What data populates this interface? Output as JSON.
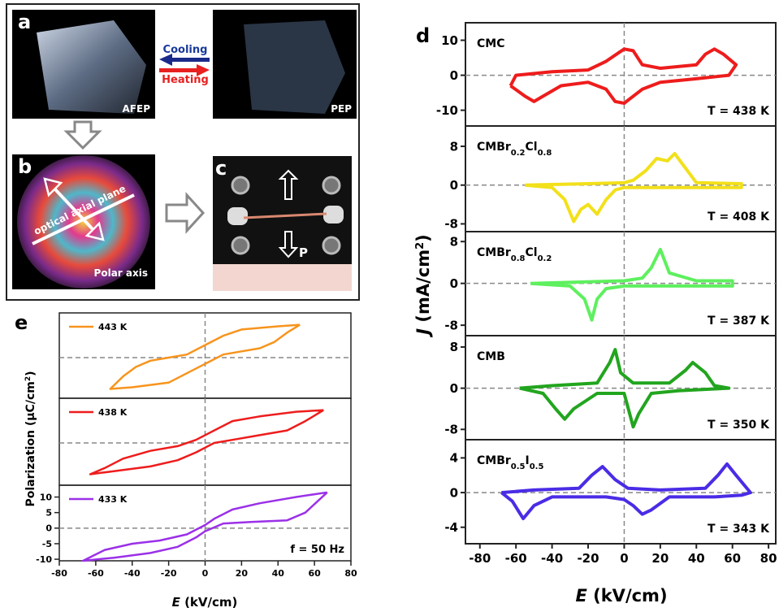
{
  "figure": {
    "panel_a": {
      "letter": "a",
      "left_label": "AFEP",
      "right_label": "PEP",
      "cooling": "Cooling",
      "heating": "Heating"
    },
    "panel_b": {
      "letter": "b",
      "plane": "optical axial plane",
      "axis": "Polar axis"
    },
    "panel_c": {
      "letter": "c",
      "pole": "P"
    },
    "panel_d": {
      "letter": "d",
      "ylabel_parts": [
        "J",
        " (mA/cm",
        "2",
        ")"
      ],
      "xlabel_parts": [
        "E",
        " (kV/cm)"
      ]
    },
    "panel_e": {
      "letter": "e",
      "ylabel_parts": [
        "Polarization (μC/cm",
        "2",
        ")"
      ],
      "xlabel_parts": [
        "E",
        " (kV/cm)"
      ]
    }
  },
  "chart_data": [
    {
      "type": "line",
      "name_parts": [
        "CMC"
      ],
      "temperature": "T = 438 K",
      "xlim": [
        -88,
        84
      ],
      "ylim": [
        -14.5,
        15
      ],
      "yticks": [
        -10,
        0,
        10
      ],
      "series": [
        {
          "color": "#ee1c1c",
          "x": [
            -63,
            -60,
            -40,
            -20,
            -10,
            0,
            5,
            10,
            20,
            40,
            45,
            50,
            55,
            62,
            58,
            40,
            20,
            10,
            0,
            -5,
            -10,
            -20,
            -35,
            -45,
            -50,
            -55,
            -63
          ],
          "values": [
            -3,
            0,
            1,
            1.5,
            4,
            7.5,
            7,
            3,
            2,
            3,
            6,
            7.5,
            6,
            3,
            0,
            -1,
            -2,
            -4,
            -8,
            -7.5,
            -4,
            -2,
            -3,
            -6,
            -7.5,
            -6,
            -3
          ]
        }
      ]
    },
    {
      "type": "line",
      "name_parts": [
        "CMBr",
        "0.2",
        "Cl",
        "0.8"
      ],
      "temperature": "T = 408 K",
      "xlim": [
        -88,
        84
      ],
      "ylim": [
        -9.6,
        12.2
      ],
      "yticks": [
        -8,
        0,
        8
      ],
      "series": [
        {
          "color": "#f2e01a",
          "x": [
            -55,
            -40,
            -33,
            -28,
            -24,
            -20,
            -15,
            -10,
            -5,
            0,
            20,
            65,
            65,
            40,
            33,
            28,
            24,
            18,
            12,
            5,
            0,
            -20,
            -55
          ],
          "values": [
            0,
            -0.5,
            -3,
            -7.5,
            -5,
            -4,
            -6,
            -3,
            -1,
            -0.5,
            -0.5,
            -0.5,
            0.3,
            0.5,
            4,
            6.5,
            5,
            5.5,
            3,
            1,
            0.5,
            0.3,
            0
          ]
        }
      ]
    },
    {
      "type": "line",
      "name_parts": [
        "CMBr",
        "0.8",
        "Cl",
        "0.2"
      ],
      "temperature": "T = 387 K",
      "xlim": [
        -88,
        84
      ],
      "ylim": [
        -10,
        9.9
      ],
      "yticks": [
        -8,
        0,
        8
      ],
      "series": [
        {
          "color": "#5ef05e",
          "x": [
            -52,
            -30,
            -22,
            -18,
            -15,
            -10,
            0,
            30,
            60,
            60,
            40,
            25,
            20,
            15,
            10,
            0,
            -52
          ],
          "values": [
            0,
            -0.5,
            -3,
            -7,
            -3,
            -1,
            -0.5,
            -0.5,
            -0.5,
            0.5,
            0.5,
            2,
            6.5,
            3,
            1,
            0.5,
            0
          ]
        }
      ]
    },
    {
      "type": "line",
      "name_parts": [
        "CMB"
      ],
      "temperature": "T = 350 K",
      "xlim": [
        -88,
        84
      ],
      "ylim": [
        -10,
        10.2
      ],
      "yticks": [
        -8,
        0,
        8
      ],
      "series": [
        {
          "color": "#22a51e",
          "x": [
            -58,
            -45,
            -38,
            -33,
            -28,
            -15,
            0,
            5,
            8,
            15,
            30,
            58,
            50,
            45,
            38,
            34,
            25,
            5,
            -2,
            -5,
            -8,
            -15,
            -40,
            -58
          ],
          "values": [
            0,
            -1,
            -4,
            -6,
            -4,
            -1,
            -1,
            -7.5,
            -5,
            -1,
            -0.5,
            0,
            0.5,
            3,
            5,
            3.5,
            1,
            1,
            3,
            7.5,
            5,
            1,
            0.5,
            0
          ]
        }
      ]
    },
    {
      "type": "line",
      "name_parts": [
        "CMBr",
        "0.5",
        "I",
        "0.5"
      ],
      "temperature": "T = 343 K",
      "xlim": [
        -88,
        84
      ],
      "ylim": [
        -5.9,
        6.1
      ],
      "yticks": [
        -4,
        0,
        4
      ],
      "xticks": [
        -80,
        -60,
        -40,
        -20,
        0,
        20,
        40,
        60,
        80
      ],
      "series": [
        {
          "color": "#4a2ce6",
          "x": [
            -68,
            -62,
            -56,
            -50,
            -40,
            -10,
            0,
            5,
            10,
            15,
            25,
            50,
            65,
            70,
            62,
            57,
            52,
            45,
            20,
            2,
            -5,
            -12,
            -18,
            -25,
            -50,
            -68
          ],
          "values": [
            0,
            -1,
            -3,
            -1.5,
            -0.5,
            -0.5,
            -0.8,
            -1.5,
            -2.5,
            -2,
            -0.5,
            -0.5,
            -0.3,
            0,
            2,
            3.3,
            2,
            0.5,
            0.3,
            0.5,
            1.5,
            3,
            2,
            0.5,
            0.3,
            0
          ]
        }
      ]
    },
    {
      "type": "line",
      "xlim": [
        -80,
        80
      ],
      "ylim": [
        -13,
        14.3
      ],
      "series": [
        {
          "name": "443 K",
          "color": "#f7941d",
          "x": [
            52,
            40,
            20,
            10,
            0,
            -10,
            -20,
            -30,
            -38,
            -45,
            -52,
            -40,
            -20,
            -10,
            0,
            10,
            20,
            30,
            38,
            45,
            52
          ],
          "values": [
            10.5,
            10,
            9,
            7,
            4,
            1,
            0,
            -1,
            -3,
            -6,
            -10,
            -9.5,
            -8,
            -5,
            -2,
            1,
            2,
            3,
            5,
            8,
            10.5
          ]
        }
      ]
    },
    {
      "type": "line",
      "xlim": [
        -80,
        80
      ],
      "ylim": [
        -13.5,
        14.3
      ],
      "series": [
        {
          "name": "438 K",
          "color": "#ee1c1c",
          "x": [
            65,
            50,
            30,
            15,
            5,
            -5,
            -15,
            -30,
            -45,
            -55,
            -63,
            -50,
            -30,
            -15,
            -5,
            5,
            15,
            30,
            45,
            55,
            65
          ],
          "values": [
            10.5,
            10,
            8.5,
            7,
            4,
            1,
            -1,
            -2.5,
            -5,
            -8,
            -10,
            -9,
            -7.5,
            -5.5,
            -3,
            0,
            1,
            2.5,
            4,
            7,
            10.5
          ]
        }
      ]
    },
    {
      "type": "line",
      "annotation": "f = 50 Hz",
      "xlim": [
        -80,
        80
      ],
      "ylim": [
        -10.5,
        13.8
      ],
      "yticks": [
        -10,
        -5,
        0,
        5,
        10
      ],
      "xticks": [
        -80,
        -60,
        -40,
        -20,
        0,
        20,
        40,
        60,
        80
      ],
      "series": [
        {
          "name": "433 K",
          "color": "#9b30e8",
          "x": [
            67,
            50,
            30,
            15,
            5,
            0,
            -10,
            -25,
            -40,
            -55,
            -67,
            -50,
            -30,
            -15,
            -5,
            0,
            10,
            25,
            45,
            55,
            67
          ],
          "values": [
            11.5,
            10,
            8,
            6,
            3,
            1,
            -2,
            -4,
            -5,
            -7,
            -10.5,
            -9.5,
            -8,
            -6,
            -3,
            -1,
            1.5,
            2,
            2.5,
            5,
            11.5
          ]
        }
      ]
    }
  ]
}
